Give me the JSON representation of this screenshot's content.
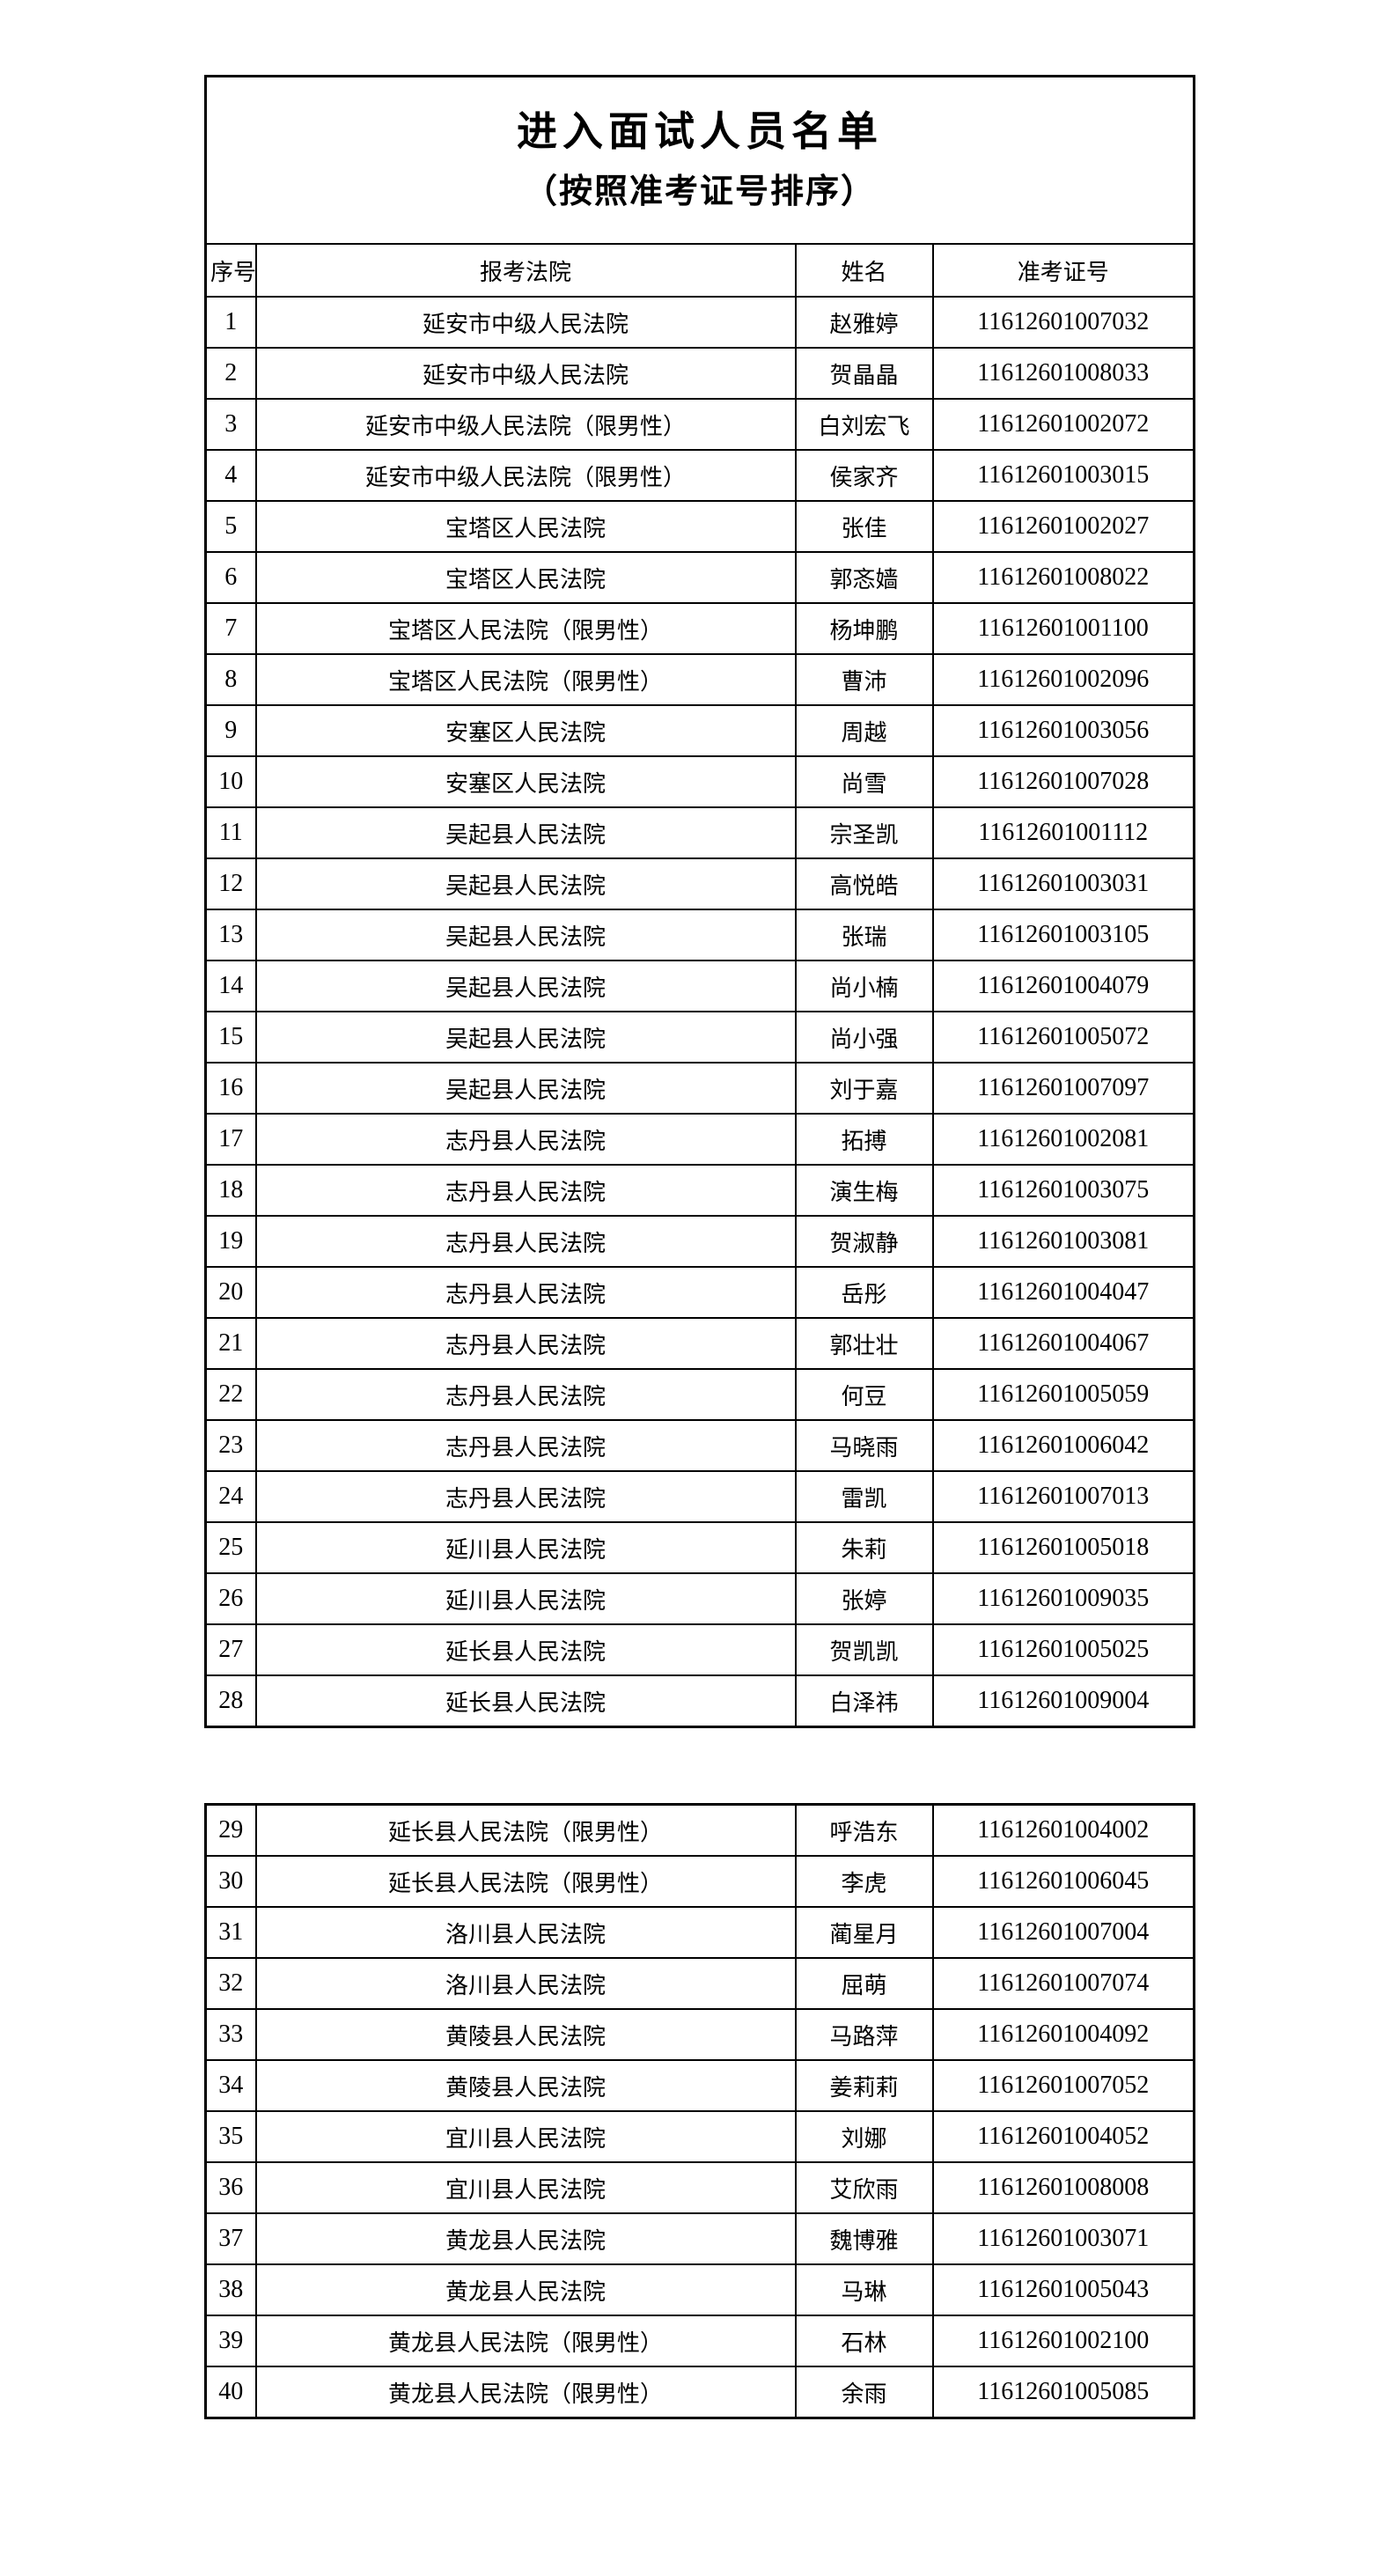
{
  "page": {
    "title": "进入面试人员名单",
    "subtitle": "（按照准考证号排序）"
  },
  "table": {
    "columns": [
      "序号",
      "报考法院",
      "姓名",
      "准考证号"
    ],
    "split_index": 28,
    "rows": [
      {
        "no": "1",
        "court": "延安市中级人民法院",
        "name": "赵雅婷",
        "ticket": "11612601007032"
      },
      {
        "no": "2",
        "court": "延安市中级人民法院",
        "name": "贺晶晶",
        "ticket": "11612601008033"
      },
      {
        "no": "3",
        "court": "延安市中级人民法院（限男性）",
        "name": "白刘宏飞",
        "ticket": "11612601002072"
      },
      {
        "no": "4",
        "court": "延安市中级人民法院（限男性）",
        "name": "侯家齐",
        "ticket": "11612601003015"
      },
      {
        "no": "5",
        "court": "宝塔区人民法院",
        "name": "张佳",
        "ticket": "11612601002027"
      },
      {
        "no": "6",
        "court": "宝塔区人民法院",
        "name": "郭忞嫱",
        "ticket": "11612601008022"
      },
      {
        "no": "7",
        "court": "宝塔区人民法院（限男性）",
        "name": "杨坤鹏",
        "ticket": "11612601001100"
      },
      {
        "no": "8",
        "court": "宝塔区人民法院（限男性）",
        "name": "曹沛",
        "ticket": "11612601002096"
      },
      {
        "no": "9",
        "court": "安塞区人民法院",
        "name": "周越",
        "ticket": "11612601003056"
      },
      {
        "no": "10",
        "court": "安塞区人民法院",
        "name": "尚雪",
        "ticket": "11612601007028"
      },
      {
        "no": "11",
        "court": "吴起县人民法院",
        "name": "宗圣凯",
        "ticket": "11612601001112"
      },
      {
        "no": "12",
        "court": "吴起县人民法院",
        "name": "高悦皓",
        "ticket": "11612601003031"
      },
      {
        "no": "13",
        "court": "吴起县人民法院",
        "name": "张瑞",
        "ticket": "11612601003105"
      },
      {
        "no": "14",
        "court": "吴起县人民法院",
        "name": "尚小楠",
        "ticket": "11612601004079"
      },
      {
        "no": "15",
        "court": "吴起县人民法院",
        "name": "尚小强",
        "ticket": "11612601005072"
      },
      {
        "no": "16",
        "court": "吴起县人民法院",
        "name": "刘于嘉",
        "ticket": "11612601007097"
      },
      {
        "no": "17",
        "court": "志丹县人民法院",
        "name": "拓搏",
        "ticket": "11612601002081"
      },
      {
        "no": "18",
        "court": "志丹县人民法院",
        "name": "演生梅",
        "ticket": "11612601003075"
      },
      {
        "no": "19",
        "court": "志丹县人民法院",
        "name": "贺淑静",
        "ticket": "11612601003081"
      },
      {
        "no": "20",
        "court": "志丹县人民法院",
        "name": "岳彤",
        "ticket": "11612601004047"
      },
      {
        "no": "21",
        "court": "志丹县人民法院",
        "name": "郭壮壮",
        "ticket": "11612601004067"
      },
      {
        "no": "22",
        "court": "志丹县人民法院",
        "name": "何豆",
        "ticket": "11612601005059"
      },
      {
        "no": "23",
        "court": "志丹县人民法院",
        "name": "马晓雨",
        "ticket": "11612601006042"
      },
      {
        "no": "24",
        "court": "志丹县人民法院",
        "name": "雷凯",
        "ticket": "11612601007013"
      },
      {
        "no": "25",
        "court": "延川县人民法院",
        "name": "朱莉",
        "ticket": "11612601005018"
      },
      {
        "no": "26",
        "court": "延川县人民法院",
        "name": "张婷",
        "ticket": "11612601009035"
      },
      {
        "no": "27",
        "court": "延长县人民法院",
        "name": "贺凯凯",
        "ticket": "11612601005025"
      },
      {
        "no": "28",
        "court": "延长县人民法院",
        "name": "白泽祎",
        "ticket": "11612601009004"
      },
      {
        "no": "29",
        "court": "延长县人民法院（限男性）",
        "name": "呼浩东",
        "ticket": "11612601004002"
      },
      {
        "no": "30",
        "court": "延长县人民法院（限男性）",
        "name": "李虎",
        "ticket": "11612601006045"
      },
      {
        "no": "31",
        "court": "洛川县人民法院",
        "name": "蔺星月",
        "ticket": "11612601007004"
      },
      {
        "no": "32",
        "court": "洛川县人民法院",
        "name": "屈萌",
        "ticket": "11612601007074"
      },
      {
        "no": "33",
        "court": "黄陵县人民法院",
        "name": "马路萍",
        "ticket": "11612601004092"
      },
      {
        "no": "34",
        "court": "黄陵县人民法院",
        "name": "姜莉莉",
        "ticket": "11612601007052"
      },
      {
        "no": "35",
        "court": "宜川县人民法院",
        "name": "刘娜",
        "ticket": "11612601004052"
      },
      {
        "no": "36",
        "court": "宜川县人民法院",
        "name": "艾欣雨",
        "ticket": "11612601008008"
      },
      {
        "no": "37",
        "court": "黄龙县人民法院",
        "name": "魏博雅",
        "ticket": "11612601003071"
      },
      {
        "no": "38",
        "court": "黄龙县人民法院",
        "name": "马琳",
        "ticket": "11612601005043"
      },
      {
        "no": "39",
        "court": "黄龙县人民法院（限男性）",
        "name": "石林",
        "ticket": "11612601002100"
      },
      {
        "no": "40",
        "court": "黄龙县人民法院（限男性）",
        "name": "余雨",
        "ticket": "11612601005085"
      }
    ]
  }
}
